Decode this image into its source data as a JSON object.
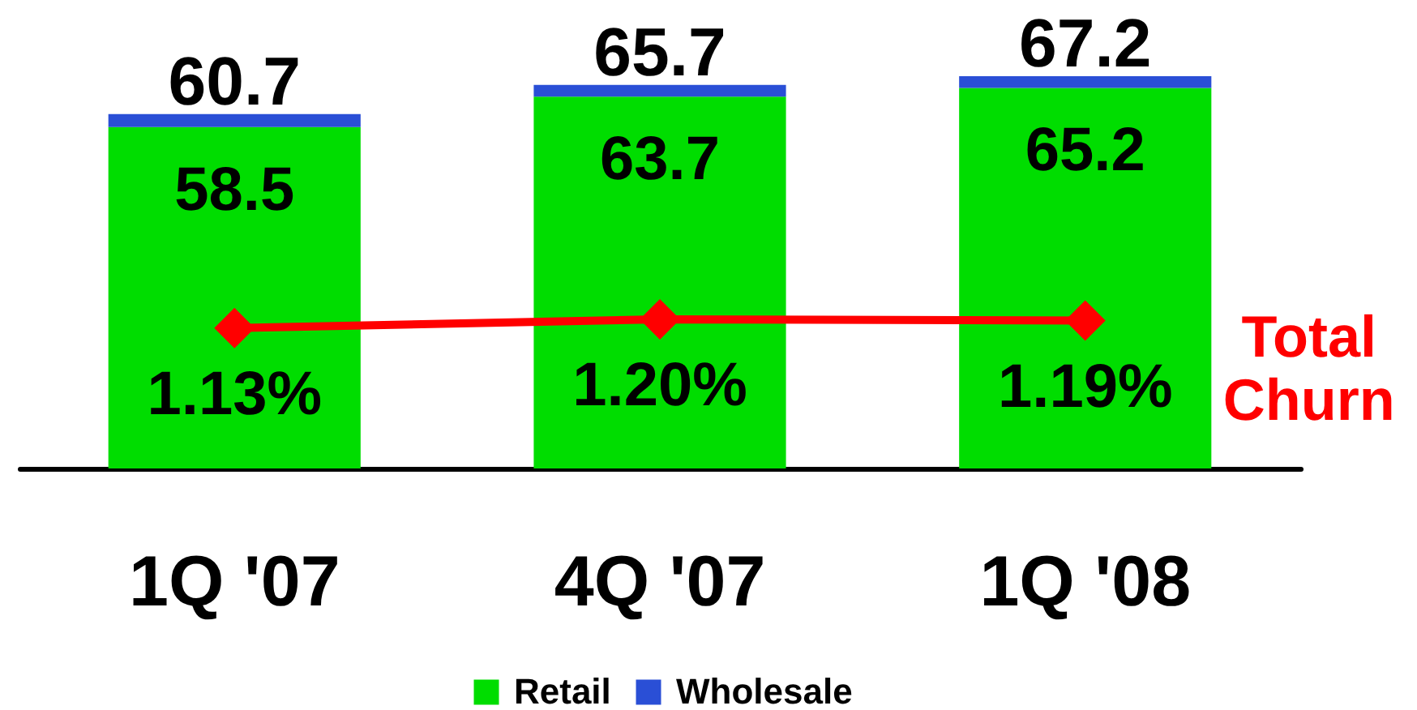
{
  "chart_data": {
    "type": "bar",
    "categories": [
      "1Q '07",
      "4Q '07",
      "1Q '08"
    ],
    "stacked": true,
    "series": [
      {
        "name": "Retail",
        "color": "#00dd00",
        "values": [
          58.5,
          63.7,
          65.2
        ],
        "value_labels": [
          "58.5",
          "63.7",
          "65.2"
        ]
      },
      {
        "name": "Wholesale",
        "color": "#2a4fd6",
        "values": [
          2.2,
          2.0,
          2.0
        ]
      },
      {
        "name": "Total Churn",
        "type": "line",
        "axis": "y2",
        "color": "#ff0000",
        "values": [
          1.13,
          1.2,
          1.19
        ],
        "value_labels": [
          "1.13%",
          "1.20%",
          "1.19%"
        ]
      }
    ],
    "totals": [
      "60.7",
      "65.7",
      "67.2"
    ],
    "tick_labels": "x",
    "legend": "bottom",
    "marker": "diamond"
  }
}
